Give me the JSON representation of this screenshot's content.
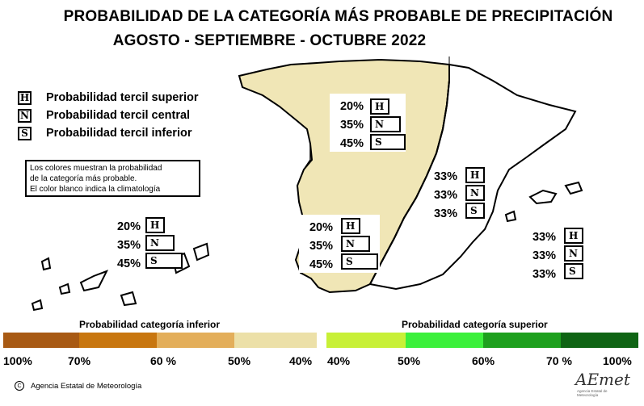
{
  "title": {
    "line1": "PROBABILIDAD DE LA  CATEGORÍA MÁS PROBABLE DE PRECIPITACIÓN",
    "line2": "AGOSTO - SEPTIEMBRE - OCTUBRE 2022"
  },
  "legend": [
    {
      "letter": "H",
      "label": "Probabilidad  tercil superior"
    },
    {
      "letter": "N",
      "label": "Probabilidad  tercil central"
    },
    {
      "letter": "S",
      "label": "Probabilidad  tercil inferior"
    }
  ],
  "note": [
    "Los colores muestran la probabilidad",
    "de la categoría más probable.",
    "El color blanco indica la climatología"
  ],
  "regions": [
    {
      "area": "north-interior",
      "H": "20%",
      "N": "35%",
      "S": "45%",
      "fill": "#f0e6b6"
    },
    {
      "area": "southwest",
      "H": "20%",
      "N": "35%",
      "S": "45%",
      "fill": "#f0e6b6"
    },
    {
      "area": "canarias",
      "H": "20%",
      "N": "35%",
      "S": "45%",
      "fill": "#ffffff"
    },
    {
      "area": "mediterranean",
      "H": "33%",
      "N": "33%",
      "S": "33%",
      "fill": "#ffffff"
    },
    {
      "area": "baleares",
      "H": "33%",
      "N": "33%",
      "S": "33%",
      "fill": "#ffffff"
    }
  ],
  "scale": {
    "inferior_title": "Probabilidad categoría inferior",
    "superior_title": "Probabilidad categoría superior",
    "inferior_colors": [
      "#a85a14",
      "#c8760f",
      "#e3ae5a",
      "#ece0a8"
    ],
    "superior_colors": [
      "#c8f037",
      "#3cf03c",
      "#1ea01e",
      "#0f6414"
    ],
    "ticks": [
      "100%",
      "70%",
      "60 %",
      "50%",
      "40%",
      "40%",
      "50%",
      "60%",
      "70 %",
      "100%"
    ]
  },
  "credit": "Agencia Estatal de Meteorología",
  "logo": {
    "text": "AEmet",
    "subtext": "Agencia Estatal de Meteorología"
  }
}
